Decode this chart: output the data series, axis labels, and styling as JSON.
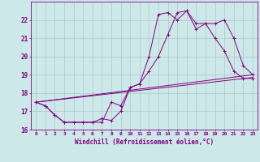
{
  "xlabel": "Windchill (Refroidissement éolien,°C)",
  "background_color": "#cde8e8",
  "line_color": "#800080",
  "grid_color": "#aec8c8",
  "x_min": -0.5,
  "x_max": 23.5,
  "y_min": 16,
  "y_max": 23,
  "series1_x": [
    0,
    1,
    2,
    3,
    4,
    5,
    6,
    7,
    8,
    9,
    10,
    11,
    12,
    13,
    14,
    15,
    16,
    17,
    18,
    19,
    20,
    21,
    22,
    23
  ],
  "series1_y": [
    17.5,
    17.3,
    16.8,
    16.4,
    16.4,
    16.4,
    16.4,
    16.4,
    17.5,
    17.3,
    18.3,
    18.5,
    20.0,
    22.3,
    22.4,
    22.0,
    22.5,
    21.5,
    21.8,
    21.0,
    20.3,
    19.2,
    18.8,
    18.8
  ],
  "series2_x": [
    0,
    1,
    2,
    3,
    4,
    5,
    6,
    7,
    8,
    9,
    10,
    11,
    12,
    13,
    14,
    15,
    16,
    17,
    18,
    19,
    20,
    21,
    22,
    23
  ],
  "series2_y": [
    17.5,
    17.3,
    16.8,
    16.4,
    16.4,
    16.4,
    16.4,
    16.6,
    16.5,
    17.0,
    18.3,
    18.5,
    19.2,
    20.0,
    21.2,
    22.4,
    22.5,
    21.8,
    21.8,
    21.8,
    22.0,
    21.0,
    19.5,
    19.0
  ],
  "series3_x": [
    0,
    23
  ],
  "series3_y": [
    17.5,
    19.0
  ],
  "series4_x": [
    0,
    23
  ],
  "series4_y": [
    17.5,
    18.85
  ]
}
